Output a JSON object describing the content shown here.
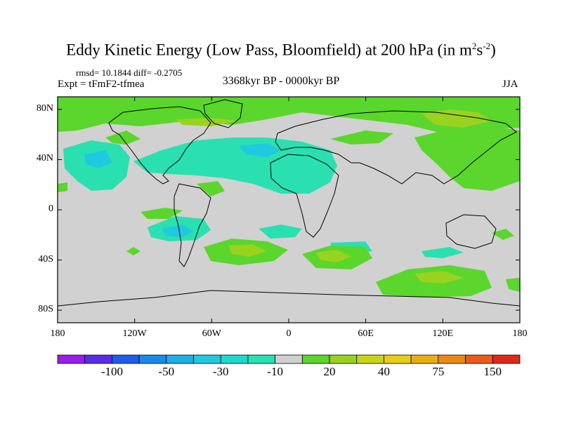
{
  "header": {
    "title": "Eddy Kinetic Energy (Low Pass, Bloomfield) at 200 hPa (in m",
    "title_sup1": "2",
    "title_mid": "s",
    "title_sup2": "-2",
    "title_end": ")",
    "stats": "rmsd= 10.1844 diff= -0.2705",
    "expt": "Expt = tFmF2-tfmea",
    "period": "3368kyr BP - 0000kyr BP",
    "season": "JJA"
  },
  "map": {
    "lat_labels": [
      "80N",
      "40N",
      "0",
      "40S",
      "80S"
    ],
    "lat_values": [
      80,
      40,
      0,
      -40,
      -80
    ],
    "lon_labels": [
      "180",
      "120W",
      "60W",
      "0",
      "60E",
      "120E",
      "180"
    ],
    "lon_values": [
      -180,
      -120,
      -60,
      0,
      60,
      120,
      180
    ],
    "background_color": "#d1d1d1"
  },
  "colorbar": {
    "colors": [
      "#9c1cec",
      "#5a2ee4",
      "#1e5ee6",
      "#1a8ae8",
      "#20aee6",
      "#20c8e0",
      "#1ed8cc",
      "#2ae0b0",
      "#d0d0d0",
      "#5ad62c",
      "#9ad220",
      "#c8d418",
      "#e8cc18",
      "#ecac18",
      "#ec8818",
      "#e85c18",
      "#e02818"
    ],
    "labels": [
      "-100",
      "-50",
      "-30",
      "-10",
      "20",
      "40",
      "75",
      "150"
    ]
  }
}
